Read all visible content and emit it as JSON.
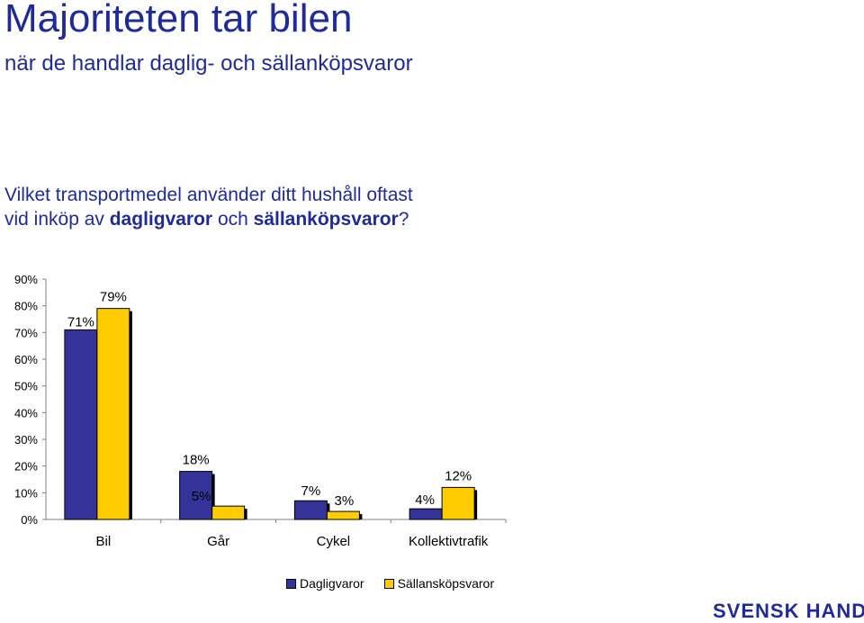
{
  "title": "Majoriteten tar bilen",
  "subtitle": "när de handlar daglig- och sällanköpsvaror",
  "question": {
    "line1": "Vilket transportmedel använder ditt hushåll oftast",
    "line2_prefix": "vid inköp av ",
    "line2_bold1": "dagligvaror",
    "line2_mid": " och ",
    "line2_bold2": "sällanköpsvaror",
    "line2_suffix": "?"
  },
  "brand": "SVENSK HANDEL",
  "colors": {
    "dagligvaror": "#333399",
    "sallanskopsvaror": "#ffcc00",
    "text": "#1f2b9a"
  },
  "chart_data": {
    "type": "bar",
    "categories": [
      "Bil",
      "Går",
      "Cykel",
      "Kollektivtrafik"
    ],
    "series": [
      {
        "name": "Dagligvaror",
        "values": [
          71,
          18,
          7,
          4
        ],
        "labels": [
          "71%",
          "18%",
          "7%",
          "4%"
        ]
      },
      {
        "name": "Sällansköpsvaror",
        "values": [
          79,
          5,
          3,
          12
        ],
        "labels": [
          "79%",
          "5%",
          "3%",
          "12%"
        ]
      }
    ],
    "ylim": [
      0,
      90
    ],
    "yticks": [
      "0%",
      "10%",
      "20%",
      "30%",
      "40%",
      "50%",
      "60%",
      "70%",
      "80%",
      "90%"
    ],
    "legend": "bottom"
  }
}
